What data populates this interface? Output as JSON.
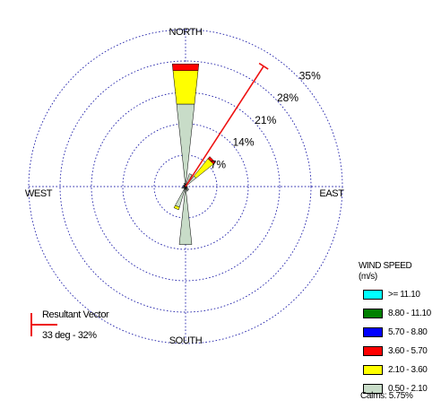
{
  "chart_data": {
    "type": "windrose",
    "directions": [
      "N",
      "NNE",
      "NE",
      "ENE",
      "E",
      "ESE",
      "SE",
      "SSE",
      "S",
      "SSW",
      "SW",
      "WSW",
      "W",
      "WNW",
      "NW",
      "NNW"
    ],
    "compass_labels": {
      "north": "NORTH",
      "south": "SOUTH",
      "east": "EAST",
      "west": "WEST"
    },
    "ring_labels": [
      "7%",
      "14%",
      "21%",
      "28%",
      "35%"
    ],
    "rmax_percent": 35,
    "legend_title": "WIND SPEED",
    "legend_units": "(m/s)",
    "speed_classes": [
      {
        "label": ">= 11.10",
        "color": "#00ffff"
      },
      {
        "label": "8.80 - 11.10",
        "color": "#008000"
      },
      {
        "label": "5.70 - 8.80",
        "color": "#0000ff"
      },
      {
        "label": "3.60 - 5.70",
        "color": "#ff0000"
      },
      {
        "label": "2.10 - 3.60",
        "color": "#ffff00"
      },
      {
        "label": "0.50 - 2.10",
        "color": "#c8dcc8"
      }
    ],
    "series": [
      {
        "name": "0.50 - 2.10",
        "values": [
          18.5,
          3.0,
          3.0,
          0.3,
          0.4,
          0.5,
          1.0,
          1.1,
          13.0,
          4.8,
          0.6,
          0.9,
          0.4,
          0.6,
          0.5,
          0.8
        ]
      },
      {
        "name": "2.10 - 3.60",
        "values": [
          7.5,
          0,
          5.0,
          0,
          0,
          0,
          0,
          0,
          0,
          0.6,
          0,
          0,
          0,
          0,
          0,
          0
        ]
      },
      {
        "name": "3.60 - 5.70",
        "values": [
          1.5,
          0,
          0.6,
          0,
          0,
          0,
          0,
          0,
          0,
          0,
          0,
          0,
          0,
          0,
          0,
          0
        ]
      },
      {
        "name": "5.70 - 8.80",
        "values": [
          0,
          0,
          0,
          0,
          0,
          0,
          0,
          0,
          0,
          0,
          0,
          0,
          0,
          0,
          0,
          0
        ]
      },
      {
        "name": "8.80 - 11.10",
        "values": [
          0,
          0,
          0,
          0,
          0,
          0,
          0,
          0,
          0,
          0,
          0,
          0,
          0,
          0,
          0,
          0
        ]
      },
      {
        "name": ">= 11.10",
        "values": [
          0,
          0,
          0,
          0,
          0,
          0,
          0,
          0,
          0,
          0,
          0,
          0,
          0,
          0,
          0,
          0
        ]
      }
    ],
    "calms_label": "Calms: 5.75%",
    "resultant_vector": {
      "title": "Resultant Vector",
      "label": "33 deg - 32%",
      "direction_deg": 33,
      "magnitude_percent": 32,
      "color": "#ee1111"
    }
  }
}
